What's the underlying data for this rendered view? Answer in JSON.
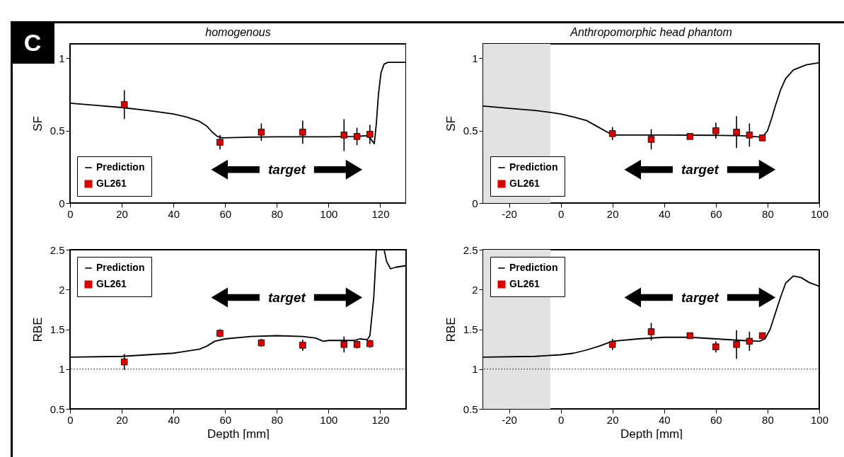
{
  "chart_data": [
    {
      "type": "line",
      "title": "homogenous",
      "ylabel": "SF",
      "xlim": [
        0,
        130
      ],
      "xticks": [
        0,
        20,
        40,
        60,
        80,
        100,
        120
      ],
      "ylim": [
        0,
        1.1
      ],
      "yticks": [
        0,
        0.5,
        1
      ],
      "legend": "bottom left",
      "annotations": [
        "C",
        "target"
      ],
      "series": [
        {
          "name": "Prediction",
          "type": "line",
          "color": "#000000",
          "x": [
            0,
            10,
            20,
            30,
            40,
            45,
            50,
            53,
            55,
            57,
            59,
            70,
            80,
            90,
            100,
            110,
            115,
            116.5,
            117.7,
            118.5,
            119.3,
            120.3,
            121.5,
            123,
            130
          ],
          "values": [
            0.69,
            0.675,
            0.66,
            0.64,
            0.615,
            0.595,
            0.565,
            0.53,
            0.49,
            0.46,
            0.45,
            0.455,
            0.458,
            0.458,
            0.458,
            0.46,
            0.465,
            0.44,
            0.41,
            0.55,
            0.75,
            0.9,
            0.96,
            0.972,
            0.972
          ]
        },
        {
          "name": "GL261",
          "type": "scatter",
          "marker": "square",
          "color": "#dd0000",
          "x": [
            21,
            58,
            74,
            90,
            106,
            111,
            116
          ],
          "values": [
            0.68,
            0.42,
            0.49,
            0.49,
            0.47,
            0.46,
            0.475
          ],
          "errors": [
            0.1,
            0.05,
            0.06,
            0.08,
            0.11,
            0.06,
            0.065
          ]
        }
      ]
    },
    {
      "type": "line",
      "title": "Anthropomorphic head phantom",
      "ylabel": "SF",
      "xlim": [
        -30,
        100
      ],
      "xticks": [
        -20,
        0,
        20,
        40,
        60,
        80,
        100
      ],
      "ylim": [
        0,
        1.1
      ],
      "yticks": [
        0,
        0.5,
        1
      ],
      "legend": "bottom left",
      "annotations": [
        "target"
      ],
      "bands": [
        {
          "axis": "x",
          "from": -30,
          "to": -4,
          "color": "#e2e2e2"
        }
      ],
      "series": [
        {
          "name": "Prediction",
          "type": "line",
          "color": "#000000",
          "x": [
            -30,
            -20,
            -10,
            -4,
            0,
            5,
            10,
            15,
            19,
            20,
            40,
            60,
            70,
            78,
            80,
            81.5,
            83,
            85,
            87,
            90,
            95,
            100
          ],
          "values": [
            0.67,
            0.655,
            0.64,
            0.626,
            0.615,
            0.595,
            0.57,
            0.52,
            0.48,
            0.47,
            0.47,
            0.468,
            0.465,
            0.455,
            0.5,
            0.58,
            0.67,
            0.78,
            0.86,
            0.92,
            0.955,
            0.97
          ]
        },
        {
          "name": "GL261",
          "type": "scatter",
          "marker": "square",
          "color": "#dd0000",
          "x": [
            20,
            35,
            50,
            60,
            68,
            73,
            78
          ],
          "values": [
            0.48,
            0.44,
            0.46,
            0.5,
            0.49,
            0.47,
            0.45
          ],
          "errors": [
            0.045,
            0.07,
            0.01,
            0.055,
            0.11,
            0.08,
            0.01
          ]
        }
      ]
    },
    {
      "type": "line",
      "xlabel": "Depth [mm]",
      "ylabel": "RBE",
      "xlim": [
        0,
        130
      ],
      "xticks": [
        0,
        20,
        40,
        60,
        80,
        100,
        120
      ],
      "ylim": [
        0.5,
        2.5
      ],
      "yticks": [
        0.5,
        1,
        1.5,
        2,
        2.5
      ],
      "legend": "top left",
      "annotations": [
        "target"
      ],
      "ref_lines": [
        {
          "axis": "y",
          "value": 1,
          "line_style": "dotted",
          "color": "#000000"
        }
      ],
      "series": [
        {
          "name": "Prediction",
          "type": "line",
          "color": "#000000",
          "x": [
            0,
            20,
            40,
            50,
            53,
            56,
            60,
            70,
            80,
            90,
            95,
            98,
            100,
            105,
            110,
            112,
            115,
            116,
            117.5,
            118.5,
            120,
            121.5,
            122.5,
            124,
            126,
            130
          ],
          "values": [
            1.15,
            1.16,
            1.2,
            1.25,
            1.29,
            1.35,
            1.38,
            1.41,
            1.42,
            1.41,
            1.39,
            1.35,
            1.36,
            1.36,
            1.36,
            1.38,
            1.37,
            1.42,
            1.9,
            2.5,
            null,
            2.5,
            2.35,
            2.26,
            2.28,
            2.3
          ]
        },
        {
          "name": "GL261",
          "type": "scatter",
          "marker": "square",
          "color": "#dd0000",
          "x": [
            21,
            58,
            74,
            90,
            106,
            111,
            116
          ],
          "values": [
            1.09,
            1.45,
            1.33,
            1.3,
            1.31,
            1.31,
            1.32
          ],
          "errors": [
            0.1,
            0.05,
            0.05,
            0.07,
            0.1,
            0.05,
            0.05
          ]
        }
      ]
    },
    {
      "type": "line",
      "xlabel": "Depth [mm]",
      "ylabel": "RBE",
      "xlim": [
        -30,
        100
      ],
      "xticks": [
        -20,
        0,
        20,
        40,
        60,
        80,
        100
      ],
      "ylim": [
        0.5,
        2.5
      ],
      "yticks": [
        0.5,
        1,
        1.5,
        2,
        2.5
      ],
      "legend": "top left",
      "annotations": [
        "target"
      ],
      "bands": [
        {
          "axis": "x",
          "from": -30,
          "to": -4,
          "color": "#e2e2e2"
        }
      ],
      "ref_lines": [
        {
          "axis": "y",
          "value": 1,
          "line_style": "dotted",
          "color": "#000000"
        }
      ],
      "series": [
        {
          "name": "Prediction",
          "type": "line",
          "color": "#000000",
          "x": [
            -30,
            -10,
            0,
            5,
            10,
            15,
            20,
            30,
            40,
            50,
            60,
            70,
            77,
            79,
            81,
            83,
            85,
            87,
            90,
            93,
            96,
            100
          ],
          "values": [
            1.15,
            1.16,
            1.18,
            1.2,
            1.24,
            1.29,
            1.35,
            1.38,
            1.4,
            1.4,
            1.38,
            1.36,
            1.35,
            1.38,
            1.5,
            1.7,
            1.9,
            2.08,
            2.17,
            2.15,
            2.09,
            2.04
          ]
        },
        {
          "name": "GL261",
          "type": "scatter",
          "marker": "square",
          "color": "#dd0000",
          "x": [
            20,
            35,
            50,
            60,
            68,
            73,
            78
          ],
          "values": [
            1.31,
            1.47,
            1.42,
            1.28,
            1.31,
            1.35,
            1.42
          ],
          "errors": [
            0.07,
            0.11,
            null,
            0.07,
            0.18,
            0.12,
            null
          ]
        }
      ]
    }
  ]
}
